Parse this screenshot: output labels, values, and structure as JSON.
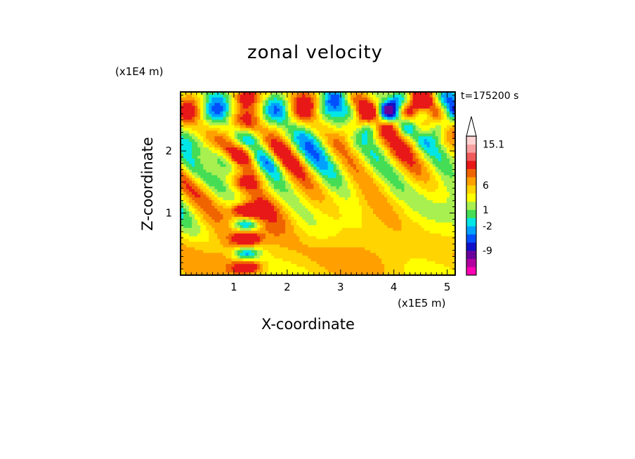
{
  "chart_data": {
    "type": "heatmap",
    "title": "zonal velocity",
    "xlabel": "X-coordinate",
    "ylabel": "Z-coordinate",
    "x_unit": "(x1E5 m)",
    "y_unit": "(x1E4 m)",
    "time_label": "t=175200 s",
    "xlim": [
      0,
      5.15
    ],
    "ylim": [
      0,
      2.95
    ],
    "xticks": [
      1,
      2,
      3,
      4,
      5
    ],
    "yticks": [
      1,
      2
    ],
    "colorbar": {
      "labels": [
        "15.1",
        "6",
        "1",
        "-2",
        "-9"
      ],
      "levels": [
        {
          "color": "#ff00b4"
        },
        {
          "color": "#b400a0"
        },
        {
          "color": "#6a009c"
        },
        {
          "color": "#1010c8"
        },
        {
          "color": "#0050ff"
        },
        {
          "color": "#00a0ff"
        },
        {
          "color": "#00e6e6"
        },
        {
          "color": "#44dd55"
        },
        {
          "color": "#a8f050"
        },
        {
          "color": "#ffff00"
        },
        {
          "color": "#ffd400"
        },
        {
          "color": "#ffa000"
        },
        {
          "color": "#f06400"
        },
        {
          "color": "#e81818"
        },
        {
          "color": "#f05a5a"
        },
        {
          "color": "#f8a0a0"
        },
        {
          "color": "#ffd2d2"
        }
      ]
    }
  }
}
